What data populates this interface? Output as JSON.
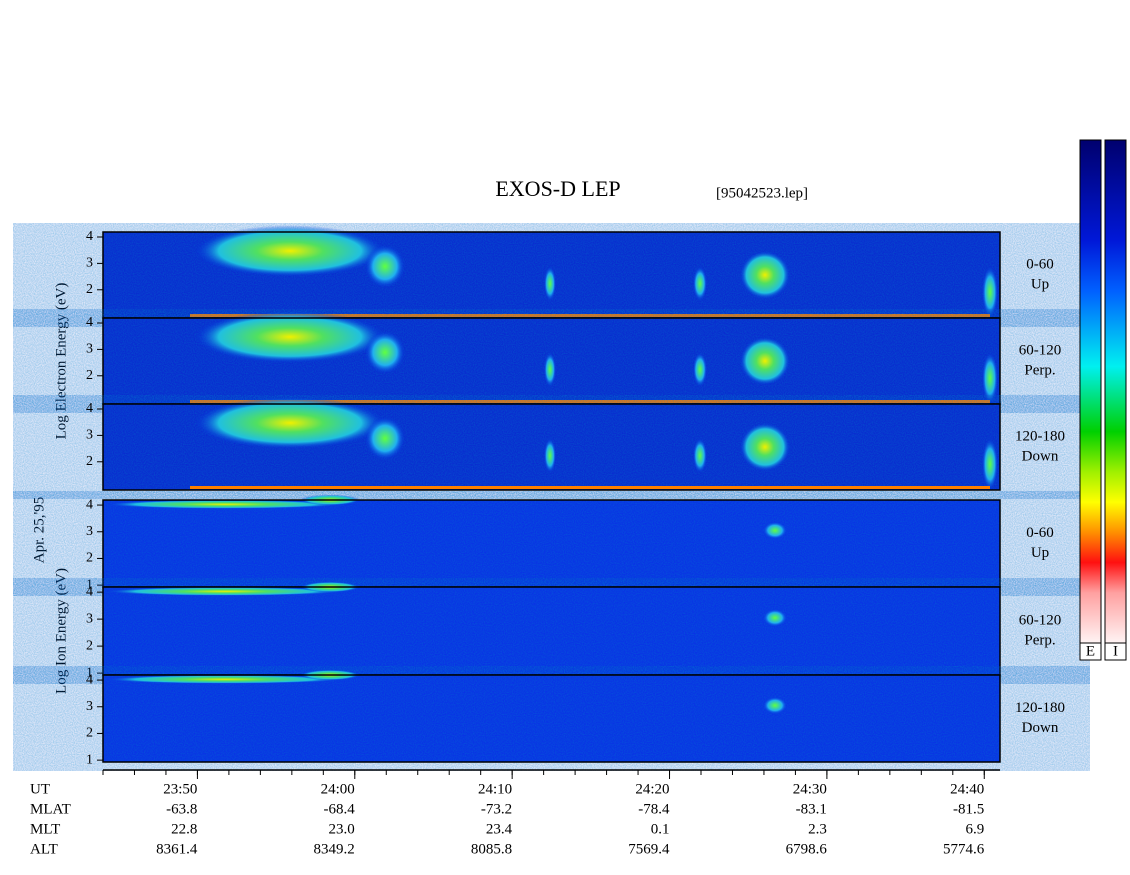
{
  "chart_data": {
    "type": "spectrogram",
    "title": "EXOS-D LEP",
    "file": "[95042523.lep]",
    "date": "Apr. 25,'95",
    "groups": [
      {
        "ylabel": "Log Electron Energy (eV)",
        "ylim": [
          0.93,
          4.19
        ],
        "yticks": [
          2,
          3,
          4
        ],
        "panels": [
          {
            "angle": "0-60",
            "dir": "Up"
          },
          {
            "angle": "60-120",
            "dir": "Perp."
          },
          {
            "angle": "120-180",
            "dir": "Down"
          }
        ]
      },
      {
        "ylabel": "Log Ion Energy (eV)",
        "ylim": [
          0.93,
          4.19
        ],
        "yticks": [
          1,
          2,
          3,
          4
        ],
        "panels": [
          {
            "angle": "0-60",
            "dir": "Up"
          },
          {
            "angle": "60-120",
            "dir": "Perp."
          },
          {
            "angle": "120-180",
            "dir": "Down"
          }
        ]
      }
    ],
    "xlim": [
      44,
      101
    ],
    "xticks": [
      {
        "value": 50,
        "label": "23:50"
      },
      {
        "value": 60,
        "label": "24:00"
      },
      {
        "value": 70,
        "label": "24:10"
      },
      {
        "value": 80,
        "label": "24:20"
      },
      {
        "value": 90,
        "label": "24:30"
      },
      {
        "value": 100,
        "label": "24:40"
      }
    ],
    "xlabel": "UT",
    "ephemeris": [
      {
        "label": "MLAT",
        "values": [
          "-63.8",
          "-68.4",
          "-73.2",
          "-78.4",
          "-83.1",
          "-81.5"
        ]
      },
      {
        "label": "MLT",
        "values": [
          "22.8",
          "23.0",
          "23.4",
          "0.1",
          "2.3",
          "6.9"
        ]
      },
      {
        "label": "ALT",
        "values": [
          "8361.4",
          "8349.2",
          "8085.8",
          "7569.4",
          "6798.6",
          "5774.6"
        ]
      }
    ],
    "colorbars": [
      "E",
      "I"
    ]
  }
}
